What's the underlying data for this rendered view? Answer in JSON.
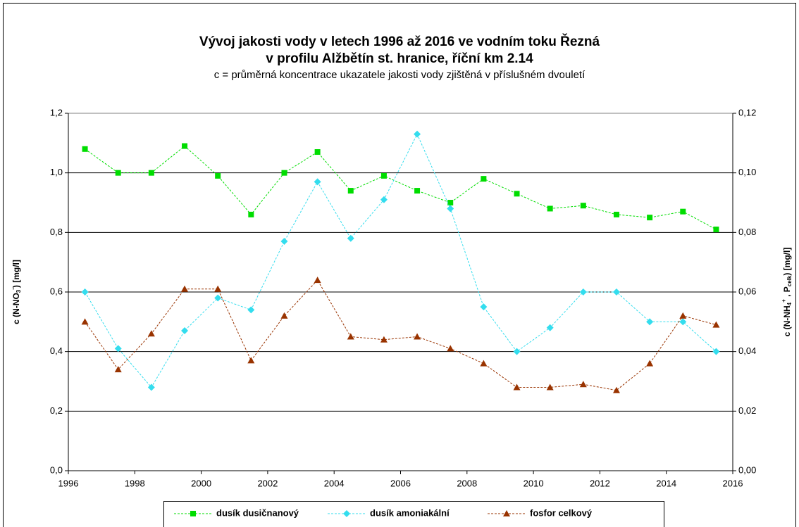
{
  "chart_data": {
    "type": "line",
    "title": [
      "Vývoj jakosti vody v letech 1996 až 2016 ve vodním toku Řezná",
      "v profilu Alžbětín st. hranice, říční km 2.14"
    ],
    "subtitle": "c = průměrná koncentrace ukazatele jakosti vody zjištěná v příslušném dvouletí",
    "ylabel": [
      "c (N-NO",
      "3",
      "-",
      ") [mg/l]"
    ],
    "y2label": [
      "c (N-NH",
      "4",
      "+",
      " , P",
      "celk",
      ") [mg/l]"
    ],
    "x": [
      1996.5,
      1997.5,
      1998.5,
      1999.5,
      2000.5,
      2001.5,
      2002.5,
      2003.5,
      2004.5,
      2005.5,
      2006.5,
      2007.5,
      2008.5,
      2009.5,
      2010.5,
      2011.5,
      2012.5,
      2013.5,
      2014.5,
      2015.5
    ],
    "xlim": [
      1996,
      2016
    ],
    "xticks": [
      1996,
      1998,
      2000,
      2002,
      2004,
      2006,
      2008,
      2010,
      2012,
      2014,
      2016
    ],
    "ylim": [
      0,
      1.2
    ],
    "yticks": [
      {
        "value": 0,
        "label": "0,0"
      },
      {
        "value": 0.2,
        "label": "0,2"
      },
      {
        "value": 0.4,
        "label": "0,4"
      },
      {
        "value": 0.6,
        "label": "0,6"
      },
      {
        "value": 0.8,
        "label": "0,8"
      },
      {
        "value": 1.0,
        "label": "1,0"
      },
      {
        "value": 1.2,
        "label": "1,2"
      }
    ],
    "y2lim": [
      0,
      0.12
    ],
    "y2ticks": [
      {
        "value": 0,
        "label": "0,00"
      },
      {
        "value": 0.02,
        "label": "0,02"
      },
      {
        "value": 0.04,
        "label": "0,04"
      },
      {
        "value": 0.06,
        "label": "0,06"
      },
      {
        "value": 0.08,
        "label": "0,08"
      },
      {
        "value": 0.1,
        "label": "0,10"
      },
      {
        "value": 0.12,
        "label": "0,12"
      }
    ],
    "grid": true,
    "legend": "bottom",
    "series": [
      {
        "name": "dusík dusičnanový",
        "color": "#00dd00",
        "marker": "square",
        "values": [
          1.08,
          1.0,
          1.0,
          1.09,
          0.99,
          0.86,
          1.0,
          1.07,
          0.94,
          0.99,
          0.94,
          0.9,
          0.98,
          0.93,
          0.88,
          0.89,
          0.86,
          0.85,
          0.87,
          0.81
        ]
      },
      {
        "name": "dusík amoniakální",
        "color": "#33ddee",
        "marker": "diamond",
        "axis": "y2",
        "values": [
          0.06,
          0.041,
          0.028,
          0.047,
          0.058,
          0.054,
          0.077,
          0.097,
          0.078,
          0.091,
          0.113,
          0.088,
          0.055,
          0.04,
          0.048,
          0.06,
          0.06,
          0.05,
          0.05,
          0.04
        ]
      },
      {
        "name": "fosfor celkový",
        "color": "#993300",
        "marker": "triangle",
        "axis": "y2",
        "values": [
          0.05,
          0.034,
          0.046,
          0.061,
          0.061,
          0.037,
          0.052,
          0.064,
          0.045,
          0.044,
          0.045,
          0.041,
          0.036,
          0.028,
          0.028,
          0.029,
          0.027,
          0.036,
          0.052,
          0.049
        ]
      }
    ]
  }
}
